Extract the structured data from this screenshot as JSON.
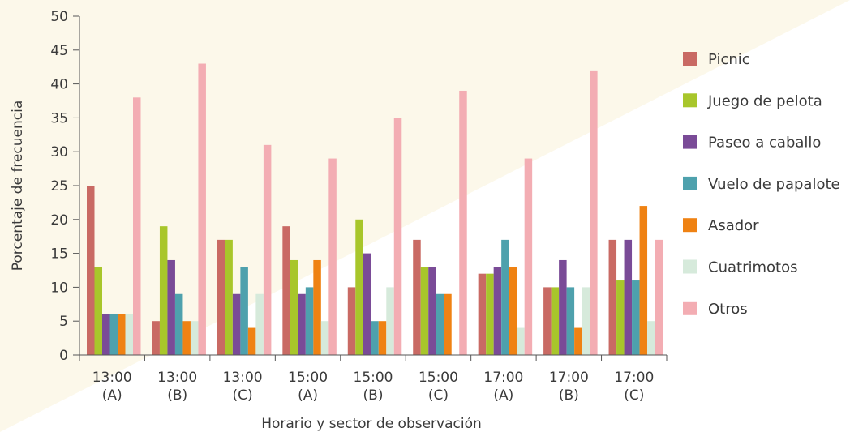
{
  "chart_data": {
    "type": "bar",
    "title": "",
    "xlabel": "Horario y sector de observación",
    "ylabel": "Porcentaje de frecuencia",
    "ylim": [
      0,
      50
    ],
    "yticks": [
      0,
      5,
      10,
      15,
      20,
      25,
      30,
      35,
      40,
      45,
      50
    ],
    "grid": false,
    "legend_position": "right",
    "categories": [
      [
        "13:00",
        "(A)"
      ],
      [
        "13:00",
        "(B)"
      ],
      [
        "13:00",
        "(C)"
      ],
      [
        "15:00",
        "(A)"
      ],
      [
        "15:00",
        "(B)"
      ],
      [
        "15:00",
        "(C)"
      ],
      [
        "17:00",
        "(A)"
      ],
      [
        "17:00",
        "(B)"
      ],
      [
        "17:00",
        "(C)"
      ]
    ],
    "series": [
      {
        "name": "Picnic",
        "color": "#c96a64",
        "values": [
          25,
          5,
          17,
          19,
          10,
          17,
          12,
          10,
          17
        ]
      },
      {
        "name": "Juego de pelota",
        "color": "#a8c62b",
        "values": [
          13,
          19,
          17,
          14,
          20,
          13,
          12,
          10,
          11
        ]
      },
      {
        "name": "Paseo a caballo",
        "color": "#7a4b97",
        "values": [
          6,
          14,
          9,
          9,
          15,
          13,
          13,
          14,
          17
        ]
      },
      {
        "name": "Vuelo de papalote",
        "color": "#4ea1ad",
        "values": [
          6,
          9,
          13,
          10,
          5,
          9,
          17,
          10,
          11
        ]
      },
      {
        "name": "Asador",
        "color": "#ef8213",
        "values": [
          6,
          5,
          4,
          14,
          5,
          9,
          13,
          4,
          22
        ]
      },
      {
        "name": "Cuatrimotos",
        "color": "#d6eadb",
        "values": [
          6,
          5,
          9,
          5,
          10,
          0,
          4,
          10,
          5
        ]
      },
      {
        "name": "Otros",
        "color": "#f3adb3",
        "values": [
          38,
          43,
          31,
          29,
          35,
          39,
          29,
          42,
          17
        ]
      }
    ]
  }
}
